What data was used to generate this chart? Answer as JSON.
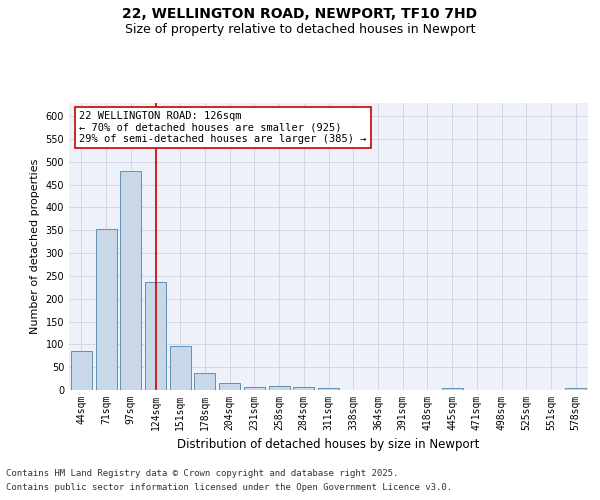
{
  "title1": "22, WELLINGTON ROAD, NEWPORT, TF10 7HD",
  "title2": "Size of property relative to detached houses in Newport",
  "xlabel": "Distribution of detached houses by size in Newport",
  "ylabel": "Number of detached properties",
  "categories": [
    "44sqm",
    "71sqm",
    "97sqm",
    "124sqm",
    "151sqm",
    "178sqm",
    "204sqm",
    "231sqm",
    "258sqm",
    "284sqm",
    "311sqm",
    "338sqm",
    "364sqm",
    "391sqm",
    "418sqm",
    "445sqm",
    "471sqm",
    "498sqm",
    "525sqm",
    "551sqm",
    "578sqm"
  ],
  "values": [
    85,
    352,
    480,
    237,
    96,
    37,
    16,
    7,
    8,
    7,
    4,
    0,
    0,
    0,
    0,
    5,
    0,
    0,
    0,
    0,
    5
  ],
  "bar_color": "#c8d8e8",
  "bar_edge_color": "#6090b8",
  "red_line_index": 3,
  "annotation_text": "22 WELLINGTON ROAD: 126sqm\n← 70% of detached houses are smaller (925)\n29% of semi-detached houses are larger (385) →",
  "annotation_box_color": "#ffffff",
  "annotation_box_edge": "#cc0000",
  "red_line_color": "#cc0000",
  "grid_color": "#d0d8e8",
  "background_color": "#eef2f8",
  "ylim": [
    0,
    630
  ],
  "yticks": [
    0,
    50,
    100,
    150,
    200,
    250,
    300,
    350,
    400,
    450,
    500,
    550,
    600
  ],
  "footer_line1": "Contains HM Land Registry data © Crown copyright and database right 2025.",
  "footer_line2": "Contains public sector information licensed under the Open Government Licence v3.0.",
  "title_fontsize": 10,
  "subtitle_fontsize": 9,
  "tick_fontsize": 7,
  "ylabel_fontsize": 8,
  "xlabel_fontsize": 8.5,
  "footer_fontsize": 6.5,
  "annot_fontsize": 7.5
}
